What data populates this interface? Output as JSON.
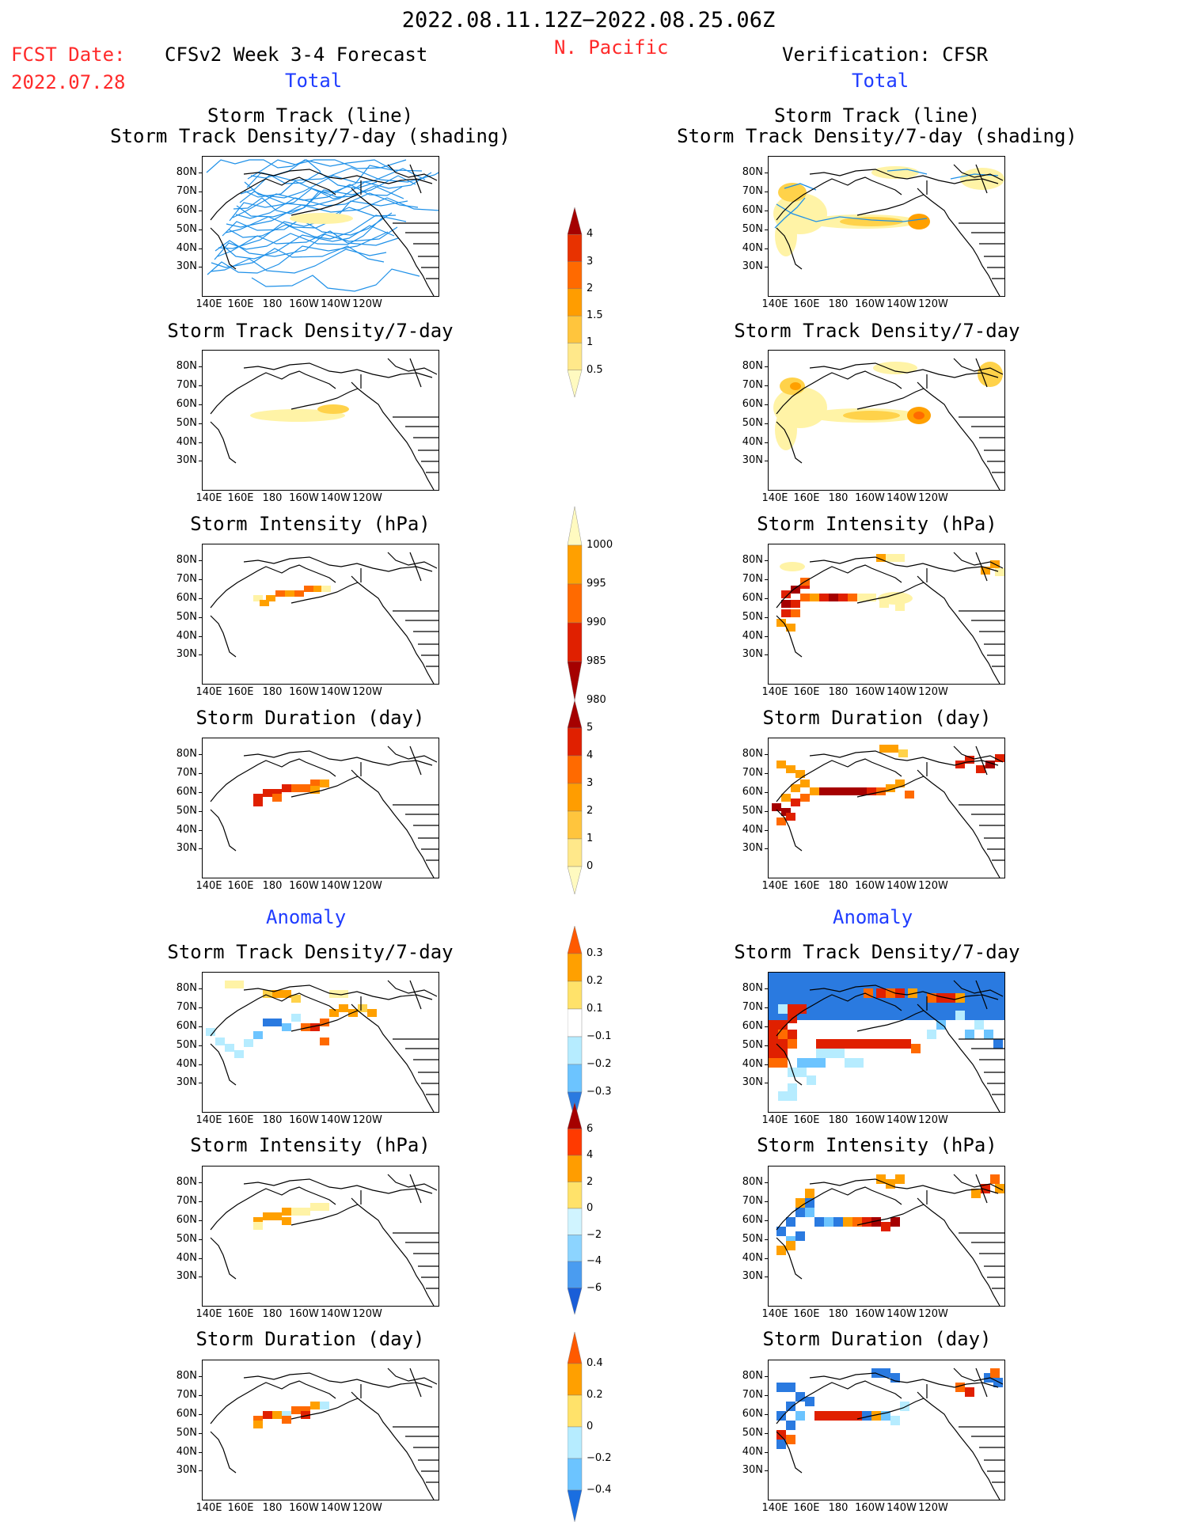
{
  "header": {
    "date_range": "2022.08.11.12Z−2022.08.25.06Z",
    "region": "N. Pacific",
    "fcst_label": "FCST Date:",
    "fcst_date": "2022.07.28",
    "left_title": "CFSv2 Week 3-4 Forecast",
    "right_title": "Verification: CFSR",
    "total_label": "Total",
    "anomaly_label": "Anomaly"
  },
  "panel_titles": {
    "track_line": "Storm Track (line)",
    "track_density_shading": "Storm Track Density/7-day (shading)",
    "track_density": "Storm Track Density/7-day",
    "intensity": "Storm Intensity (hPa)",
    "duration": "Storm Duration (day)"
  },
  "axes": {
    "lat_labels": [
      "80N",
      "70N",
      "60N",
      "50N",
      "40N",
      "30N"
    ],
    "lon_labels": [
      "140E",
      "160E",
      "180",
      "160W",
      "140W",
      "120W"
    ]
  },
  "colorbars": [
    {
      "id": "density",
      "labels": [
        "4",
        "3",
        "2",
        "1.5",
        "1",
        "0.5"
      ],
      "colors": [
        "#a50000",
        "#e83200",
        "#ff6a00",
        "#ff9d00",
        "#ffc53d",
        "#ffe88a",
        "#fffac0"
      ]
    },
    {
      "id": "intensity",
      "labels": [
        "1000",
        "995",
        "990",
        "985",
        "980"
      ],
      "colors": [
        "#fffac0",
        "#ffa000",
        "#ff6a00",
        "#e02000",
        "#a50000"
      ]
    },
    {
      "id": "duration",
      "labels": [
        "5",
        "4",
        "3",
        "2",
        "1",
        "0"
      ],
      "colors": [
        "#a50000",
        "#e02000",
        "#ff6a00",
        "#ff9d00",
        "#ffc53d",
        "#ffe88a",
        "#fffac0"
      ]
    },
    {
      "id": "density_anom",
      "labels": [
        "0.3",
        "0.2",
        "0.1",
        "−0.1",
        "−0.2",
        "−0.3"
      ],
      "colors": [
        "#ff5a00",
        "#ffa000",
        "#ffe26a",
        "#ffffff",
        "#b6ecff",
        "#6cc4ff",
        "#2a7ae0"
      ]
    },
    {
      "id": "intensity_anom",
      "labels": [
        "6",
        "4",
        "2",
        "0",
        "−2",
        "−4",
        "−6"
      ],
      "colors": [
        "#a50000",
        "#ff3a00",
        "#ff9d00",
        "#ffe26a",
        "#d0f4ff",
        "#8cd4ff",
        "#4a9cf0",
        "#1a5ed8"
      ]
    },
    {
      "id": "duration_anom",
      "labels": [
        "0.4",
        "0.2",
        "0",
        "−0.2",
        "−0.4"
      ],
      "colors": [
        "#ff5a00",
        "#ffa000",
        "#ffe26a",
        "#b6ecff",
        "#6cc4ff",
        "#1a6ee0"
      ]
    }
  ],
  "colors": {
    "title_red": "#ff2a2a",
    "title_blue": "#1f3cff",
    "track_line": "#1e90e8"
  }
}
